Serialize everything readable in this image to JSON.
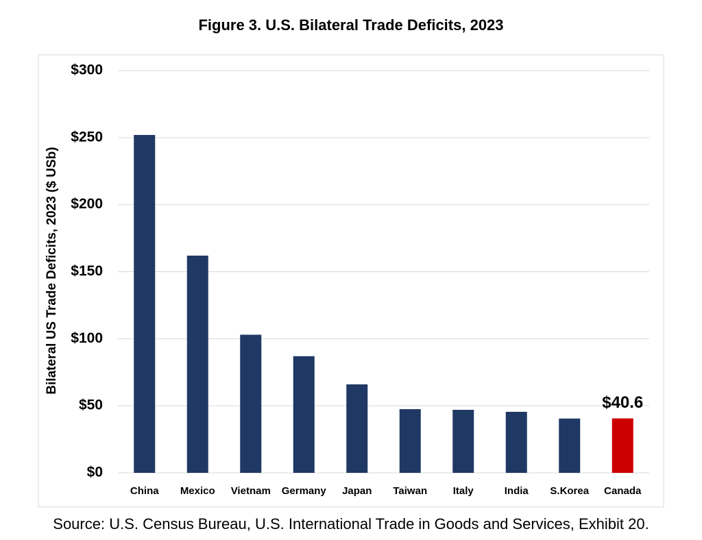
{
  "chart_data": {
    "type": "bar",
    "title": "Figure 3. U.S. Bilateral Trade Deficits, 2023",
    "y_label": "Bilateral US Trade Deficits, 2023 ($ USb)",
    "categories": [
      "China",
      "Mexico",
      "Vietnam",
      "Germany",
      "Japan",
      "Taiwan",
      "Italy",
      "India",
      "S.Korea",
      "Canada"
    ],
    "values": [
      252,
      162,
      103,
      87,
      66,
      47.5,
      47,
      45.5,
      40.5,
      40.6
    ],
    "value_labels": [
      null,
      null,
      null,
      null,
      null,
      null,
      null,
      null,
      null,
      "$40.6"
    ],
    "colors": [
      "#1f3864",
      "#1f3864",
      "#1f3864",
      "#1f3864",
      "#1f3864",
      "#1f3864",
      "#1f3864",
      "#1f3864",
      "#1f3864",
      "#cc0000"
    ],
    "ylim": [
      0,
      300
    ],
    "yticks": [
      {
        "value": 0,
        "label": "$0"
      },
      {
        "value": 50,
        "label": "$50"
      },
      {
        "value": 100,
        "label": "$100"
      },
      {
        "value": 150,
        "label": "$150"
      },
      {
        "value": 200,
        "label": "$200"
      },
      {
        "value": 250,
        "label": "$250"
      },
      {
        "value": 300,
        "label": "$300"
      }
    ],
    "grid": true,
    "source": "Source: U.S. Census Bureau, U.S. International Trade in Goods and Services, Exhibit 20."
  }
}
